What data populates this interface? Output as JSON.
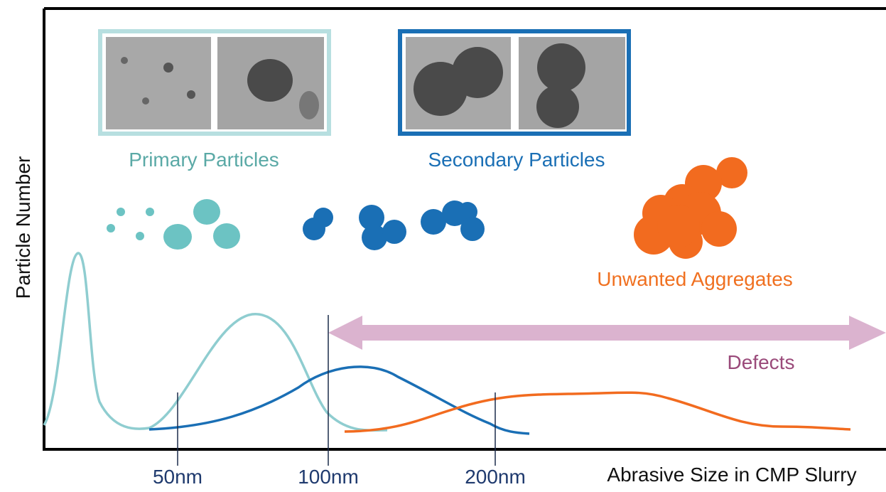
{
  "labels": {
    "primary": "Primary Particles",
    "secondary": "Secondary Particles",
    "aggregates": "Unwanted Aggregates",
    "defects": "Defects"
  },
  "axis": {
    "y_label": "Particle Number",
    "x_label": "Abrasive Size in CMP Slurry",
    "ticks": [
      "50nm",
      "100nm",
      "200nm"
    ]
  }
}
